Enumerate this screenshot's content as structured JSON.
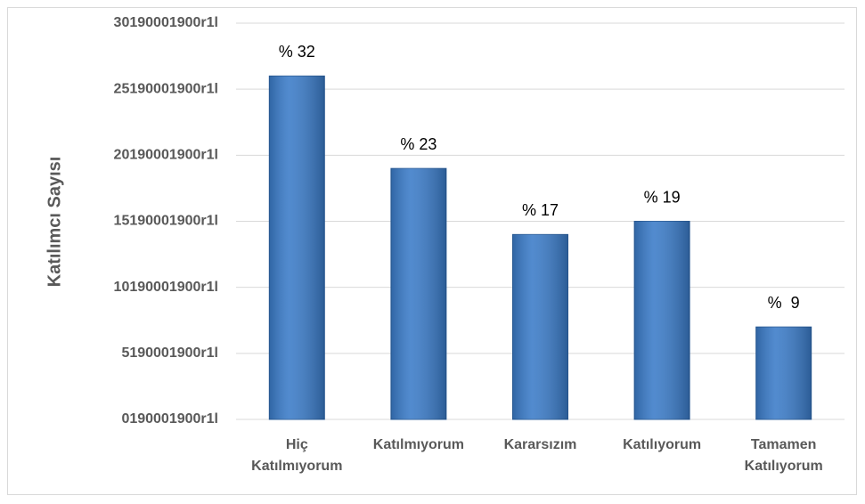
{
  "chart_data": {
    "type": "bar",
    "y_label": "Katılımcı Sayısı",
    "categories": [
      "Hiç Katılmıyorum",
      "Katılmıyorum",
      "Kararsızım",
      "Katılıyorum",
      "Tamamen Katılıyorum"
    ],
    "values": [
      26,
      19,
      14,
      15,
      7
    ],
    "annotations": [
      "% 32",
      "% 23",
      "% 17",
      "% 19",
      "%  9"
    ],
    "color": "#3a7bc8",
    "ylim": [
      0,
      30
    ],
    "yticks": [
      {
        "value": 0,
        "label": "0190001900r1l"
      },
      {
        "value": 5,
        "label": "5190001900r1l"
      },
      {
        "value": 10,
        "label": "10190001900r1l"
      },
      {
        "value": 15,
        "label": "15190001900r1l"
      },
      {
        "value": 20,
        "label": "20190001900r1l"
      },
      {
        "value": 25,
        "label": "25190001900r1l"
      },
      {
        "value": 30,
        "label": "30190001900r1l"
      }
    ],
    "grid": true
  }
}
